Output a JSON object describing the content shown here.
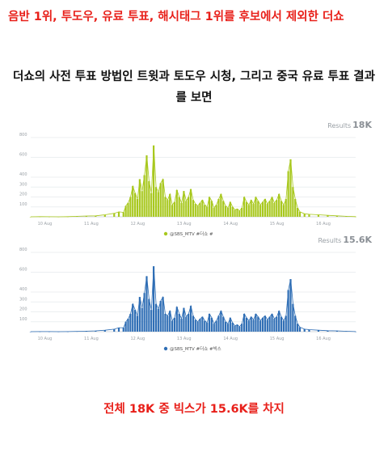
{
  "headline": "음반 1위, 투도우, 유료 투표, 해시태그 1위를 후보에서 제외한 더쇼",
  "subhead": "더쇼의 사전 투표 방법인 트윗과 토도우 시청, 그리고 중국 유료 투표 결과를 보면",
  "footer": "전체 18K 중 빅스가 15.6K를 차지",
  "chart_data": [
    {
      "type": "bar",
      "results_label": "Results",
      "results_value": "18K",
      "color": "#a8c81e",
      "legend": "@SBS_MTV #더쇼 #",
      "legend_position": "bottom-center",
      "x_ticks": [
        "10 Aug",
        "11 Aug",
        "12 Aug",
        "13 Aug",
        "14 Aug",
        "15 Aug",
        "16 Aug"
      ],
      "y_ticks": [
        100,
        200,
        300,
        400,
        600,
        800
      ],
      "ylim": [
        0,
        800
      ],
      "x_range": [
        0,
        7
      ],
      "grid": true,
      "points": [
        [
          0.0,
          0
        ],
        [
          0.2,
          2
        ],
        [
          0.4,
          1
        ],
        [
          0.6,
          0
        ],
        [
          0.8,
          2
        ],
        [
          1.0,
          5
        ],
        [
          1.2,
          8
        ],
        [
          1.4,
          10
        ],
        [
          1.6,
          20
        ],
        [
          1.8,
          35
        ],
        [
          1.9,
          50
        ],
        [
          2.0,
          45
        ],
        [
          2.05,
          110
        ],
        [
          2.1,
          140
        ],
        [
          2.15,
          200
        ],
        [
          2.2,
          310
        ],
        [
          2.25,
          240
        ],
        [
          2.3,
          180
        ],
        [
          2.35,
          380
        ],
        [
          2.4,
          260
        ],
        [
          2.45,
          420
        ],
        [
          2.5,
          620
        ],
        [
          2.55,
          360
        ],
        [
          2.6,
          240
        ],
        [
          2.65,
          720
        ],
        [
          2.7,
          300
        ],
        [
          2.75,
          250
        ],
        [
          2.8,
          340
        ],
        [
          2.85,
          380
        ],
        [
          2.9,
          200
        ],
        [
          2.95,
          170
        ],
        [
          3.0,
          230
        ],
        [
          3.05,
          120
        ],
        [
          3.1,
          150
        ],
        [
          3.15,
          270
        ],
        [
          3.2,
          200
        ],
        [
          3.25,
          140
        ],
        [
          3.3,
          260
        ],
        [
          3.35,
          160
        ],
        [
          3.4,
          200
        ],
        [
          3.45,
          280
        ],
        [
          3.5,
          170
        ],
        [
          3.55,
          130
        ],
        [
          3.6,
          110
        ],
        [
          3.65,
          140
        ],
        [
          3.7,
          170
        ],
        [
          3.75,
          120
        ],
        [
          3.8,
          100
        ],
        [
          3.85,
          200
        ],
        [
          3.9,
          160
        ],
        [
          3.95,
          90
        ],
        [
          4.0,
          120
        ],
        [
          4.05,
          180
        ],
        [
          4.1,
          230
        ],
        [
          4.15,
          160
        ],
        [
          4.2,
          110
        ],
        [
          4.25,
          90
        ],
        [
          4.3,
          150
        ],
        [
          4.35,
          100
        ],
        [
          4.4,
          70
        ],
        [
          4.45,
          80
        ],
        [
          4.5,
          60
        ],
        [
          4.55,
          90
        ],
        [
          4.6,
          200
        ],
        [
          4.65,
          150
        ],
        [
          4.7,
          120
        ],
        [
          4.75,
          170
        ],
        [
          4.8,
          130
        ],
        [
          4.85,
          200
        ],
        [
          4.9,
          160
        ],
        [
          4.95,
          120
        ],
        [
          5.0,
          150
        ],
        [
          5.05,
          180
        ],
        [
          5.1,
          130
        ],
        [
          5.15,
          160
        ],
        [
          5.2,
          200
        ],
        [
          5.25,
          140
        ],
        [
          5.3,
          170
        ],
        [
          5.35,
          230
        ],
        [
          5.4,
          160
        ],
        [
          5.45,
          120
        ],
        [
          5.5,
          180
        ],
        [
          5.55,
          460
        ],
        [
          5.6,
          580
        ],
        [
          5.65,
          300
        ],
        [
          5.7,
          180
        ],
        [
          5.75,
          90
        ],
        [
          5.8,
          50
        ],
        [
          5.9,
          30
        ],
        [
          6.0,
          25
        ],
        [
          6.2,
          20
        ],
        [
          6.4,
          15
        ],
        [
          6.6,
          10
        ],
        [
          6.8,
          5
        ],
        [
          7.0,
          2
        ]
      ]
    },
    {
      "type": "bar",
      "results_label": "Results",
      "results_value": "15.6K",
      "color": "#2f6eb5",
      "legend": "@SBS_MTV #더쇼 #빅스",
      "legend_position": "bottom-center",
      "x_ticks": [
        "10 Aug",
        "11 Aug",
        "12 Aug",
        "13 Aug",
        "14 Aug",
        "15 Aug",
        "16 Aug"
      ],
      "y_ticks": [
        100,
        200,
        300,
        400,
        600,
        800
      ],
      "ylim": [
        0,
        800
      ],
      "x_range": [
        0,
        7
      ],
      "grid": true,
      "points": [
        [
          0.0,
          0
        ],
        [
          0.2,
          1
        ],
        [
          0.4,
          1
        ],
        [
          0.6,
          0
        ],
        [
          0.8,
          1
        ],
        [
          1.0,
          3
        ],
        [
          1.2,
          5
        ],
        [
          1.4,
          8
        ],
        [
          1.6,
          15
        ],
        [
          1.8,
          25
        ],
        [
          1.9,
          40
        ],
        [
          2.0,
          40
        ],
        [
          2.05,
          100
        ],
        [
          2.1,
          130
        ],
        [
          2.15,
          180
        ],
        [
          2.2,
          280
        ],
        [
          2.25,
          220
        ],
        [
          2.3,
          160
        ],
        [
          2.35,
          350
        ],
        [
          2.4,
          240
        ],
        [
          2.45,
          390
        ],
        [
          2.5,
          560
        ],
        [
          2.55,
          330
        ],
        [
          2.6,
          220
        ],
        [
          2.65,
          660
        ],
        [
          2.7,
          280
        ],
        [
          2.75,
          230
        ],
        [
          2.8,
          310
        ],
        [
          2.85,
          350
        ],
        [
          2.9,
          180
        ],
        [
          2.95,
          160
        ],
        [
          3.0,
          210
        ],
        [
          3.05,
          110
        ],
        [
          3.1,
          140
        ],
        [
          3.15,
          250
        ],
        [
          3.2,
          180
        ],
        [
          3.25,
          130
        ],
        [
          3.3,
          240
        ],
        [
          3.35,
          150
        ],
        [
          3.4,
          180
        ],
        [
          3.45,
          260
        ],
        [
          3.5,
          160
        ],
        [
          3.55,
          120
        ],
        [
          3.6,
          100
        ],
        [
          3.65,
          130
        ],
        [
          3.7,
          150
        ],
        [
          3.75,
          110
        ],
        [
          3.8,
          90
        ],
        [
          3.85,
          180
        ],
        [
          3.9,
          140
        ],
        [
          3.95,
          80
        ],
        [
          4.0,
          110
        ],
        [
          4.05,
          160
        ],
        [
          4.1,
          210
        ],
        [
          4.15,
          150
        ],
        [
          4.2,
          100
        ],
        [
          4.25,
          80
        ],
        [
          4.3,
          140
        ],
        [
          4.35,
          90
        ],
        [
          4.4,
          60
        ],
        [
          4.45,
          70
        ],
        [
          4.5,
          50
        ],
        [
          4.55,
          80
        ],
        [
          4.6,
          180
        ],
        [
          4.65,
          140
        ],
        [
          4.7,
          110
        ],
        [
          4.75,
          150
        ],
        [
          4.8,
          120
        ],
        [
          4.85,
          180
        ],
        [
          4.9,
          150
        ],
        [
          4.95,
          110
        ],
        [
          5.0,
          140
        ],
        [
          5.05,
          160
        ],
        [
          5.1,
          120
        ],
        [
          5.15,
          150
        ],
        [
          5.2,
          180
        ],
        [
          5.25,
          130
        ],
        [
          5.3,
          150
        ],
        [
          5.35,
          210
        ],
        [
          5.4,
          150
        ],
        [
          5.45,
          110
        ],
        [
          5.5,
          160
        ],
        [
          5.55,
          420
        ],
        [
          5.6,
          530
        ],
        [
          5.65,
          280
        ],
        [
          5.7,
          160
        ],
        [
          5.75,
          80
        ],
        [
          5.8,
          45
        ],
        [
          5.9,
          25
        ],
        [
          6.0,
          20
        ],
        [
          6.2,
          15
        ],
        [
          6.4,
          10
        ],
        [
          6.6,
          8
        ],
        [
          6.8,
          4
        ],
        [
          7.0,
          1
        ]
      ]
    }
  ]
}
